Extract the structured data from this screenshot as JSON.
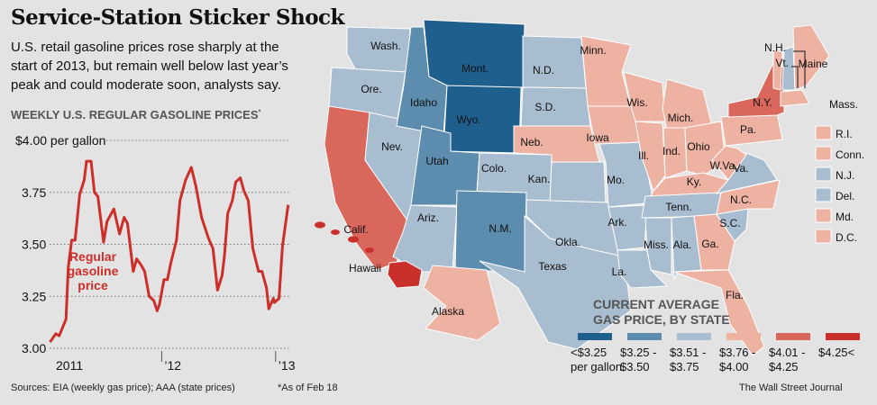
{
  "header": {
    "title": "Service-Station Sticker Shock",
    "subtitle": "U.S. retail gasoline prices rose sharply at the start of 2013, but remain well below last year’s peak and could moderate soon, analysts say."
  },
  "chart_data": {
    "type": "line",
    "title": "WEEKLY U.S. REGULAR GASOLINE PRICES",
    "title_note": "*",
    "ylabel": "$4.00 per gallon",
    "ylim": [
      3.0,
      4.0
    ],
    "yticks": [
      {
        "v": 3.0,
        "label": "3.00"
      },
      {
        "v": 3.25,
        "label": "3.25"
      },
      {
        "v": 3.5,
        "label": "3.50"
      },
      {
        "v": 3.75,
        "label": "3.75"
      },
      {
        "v": 4.0,
        "label": "$4.00 per gallon"
      }
    ],
    "xticks": [
      {
        "v": 2011.0,
        "label": "2011"
      },
      {
        "v": 2012.0,
        "label": "’12"
      },
      {
        "v": 2013.0,
        "label": "’13"
      }
    ],
    "xlim": [
      2011.0,
      2013.14
    ],
    "grid": true,
    "series": [
      {
        "name": "Regular gasoline price",
        "color": "#cc2f2a",
        "x": [
          2011.02,
          2011.07,
          2011.1,
          2011.13,
          2011.16,
          2011.18,
          2011.21,
          2011.24,
          2011.28,
          2011.32,
          2011.34,
          2011.38,
          2011.41,
          2011.44,
          2011.49,
          2011.52,
          2011.58,
          2011.63,
          2011.67,
          2011.7,
          2011.75,
          2011.78,
          2011.82,
          2011.85,
          2011.89,
          2011.93,
          2011.96,
          2011.98,
          2012.02,
          2012.05,
          2012.08,
          2012.13,
          2012.16,
          2012.21,
          2012.26,
          2012.3,
          2012.35,
          2012.41,
          2012.45,
          2012.49,
          2012.53,
          2012.55,
          2012.58,
          2012.62,
          2012.65,
          2012.69,
          2012.72,
          2012.76,
          2012.8,
          2012.85,
          2012.88,
          2012.92,
          2012.94,
          2012.98,
          2012.99,
          2013.03,
          2013.06,
          2013.11
        ],
        "y": [
          3.03,
          3.07,
          3.06,
          3.1,
          3.14,
          3.39,
          3.52,
          3.52,
          3.74,
          3.81,
          3.9,
          3.9,
          3.75,
          3.73,
          3.51,
          3.61,
          3.67,
          3.55,
          3.63,
          3.6,
          3.37,
          3.43,
          3.4,
          3.37,
          3.25,
          3.23,
          3.18,
          3.21,
          3.33,
          3.33,
          3.41,
          3.52,
          3.71,
          3.81,
          3.87,
          3.78,
          3.63,
          3.53,
          3.48,
          3.28,
          3.35,
          3.44,
          3.65,
          3.71,
          3.8,
          3.82,
          3.76,
          3.71,
          3.48,
          3.37,
          3.37,
          3.29,
          3.19,
          3.24,
          3.22,
          3.24,
          3.49,
          3.69
        ]
      }
    ],
    "annotation": [
      "Regular",
      "gasoline",
      "price"
    ]
  },
  "map": {
    "legend_title": [
      "CURRENT AVERAGE",
      "GAS PRICE, BY STATE"
    ],
    "categories": [
      {
        "label": [
          "<$3.25",
          "per gallon"
        ],
        "color": "#1f5f8e"
      },
      {
        "label": [
          "$3.25 -",
          "$3.50"
        ],
        "color": "#5c8cae"
      },
      {
        "label": [
          "$3.51 -",
          "$3.75"
        ],
        "color": "#a9bdd0"
      },
      {
        "label": [
          "$3.76 -",
          "$4.00"
        ],
        "color": "#eeb2a3"
      },
      {
        "label": [
          "$4.01 -",
          "$4.25"
        ],
        "color": "#d9675b"
      },
      {
        "label": [
          "$4.25<",
          ""
        ],
        "color": "#c92f2b"
      }
    ],
    "states": [
      {
        "name": "Wash.",
        "cat": 2
      },
      {
        "name": "Ore.",
        "cat": 2
      },
      {
        "name": "Calif.",
        "cat": 4
      },
      {
        "name": "Nev.",
        "cat": 2
      },
      {
        "name": "Idaho",
        "cat": 1
      },
      {
        "name": "Mont.",
        "cat": 0
      },
      {
        "name": "Wyo.",
        "cat": 0
      },
      {
        "name": "Utah",
        "cat": 1
      },
      {
        "name": "Colo.",
        "cat": 2
      },
      {
        "name": "Ariz.",
        "cat": 2
      },
      {
        "name": "N.M.",
        "cat": 1
      },
      {
        "name": "N.D.",
        "cat": 2
      },
      {
        "name": "S.D.",
        "cat": 2
      },
      {
        "name": "Neb.",
        "cat": 3
      },
      {
        "name": "Kan.",
        "cat": 2
      },
      {
        "name": "Okla.",
        "cat": 2
      },
      {
        "name": "Texas",
        "cat": 2
      },
      {
        "name": "Minn.",
        "cat": 3
      },
      {
        "name": "Iowa",
        "cat": 3
      },
      {
        "name": "Mo.",
        "cat": 2
      },
      {
        "name": "Ark.",
        "cat": 2
      },
      {
        "name": "La.",
        "cat": 2
      },
      {
        "name": "Wis.",
        "cat": 3
      },
      {
        "name": "Ill.",
        "cat": 3
      },
      {
        "name": "Mich.",
        "cat": 3
      },
      {
        "name": "Ind.",
        "cat": 3
      },
      {
        "name": "Ohio",
        "cat": 3
      },
      {
        "name": "Ky.",
        "cat": 3
      },
      {
        "name": "Tenn.",
        "cat": 2
      },
      {
        "name": "Miss.",
        "cat": 2
      },
      {
        "name": "Ala.",
        "cat": 2
      },
      {
        "name": "Ga.",
        "cat": 3
      },
      {
        "name": "Fla.",
        "cat": 3
      },
      {
        "name": "S.C.",
        "cat": 2
      },
      {
        "name": "N.C.",
        "cat": 3
      },
      {
        "name": "Va.",
        "cat": 2
      },
      {
        "name": "W.Va.",
        "cat": 3
      },
      {
        "name": "Pa.",
        "cat": 3
      },
      {
        "name": "N.Y.",
        "cat": 4
      },
      {
        "name": "Vt.",
        "cat": 3
      },
      {
        "name": "N.H.",
        "cat": 2
      },
      {
        "name": "Maine",
        "cat": 3
      },
      {
        "name": "Mass.",
        "cat": 3
      },
      {
        "name": "Alaska",
        "cat": 3
      },
      {
        "name": "Hawaii",
        "cat": 5
      }
    ],
    "small_states": [
      {
        "name": "R.I.",
        "cat": 3
      },
      {
        "name": "Conn.",
        "cat": 3
      },
      {
        "name": "N.J.",
        "cat": 2
      },
      {
        "name": "Del.",
        "cat": 2
      },
      {
        "name": "Md.",
        "cat": 3
      },
      {
        "name": "D.C.",
        "cat": 3
      }
    ]
  },
  "footer": {
    "sources": "Sources: EIA (weekly gas price); AAA (state prices)",
    "note": "*As of Feb 18",
    "credit": "The Wall Street Journal"
  }
}
